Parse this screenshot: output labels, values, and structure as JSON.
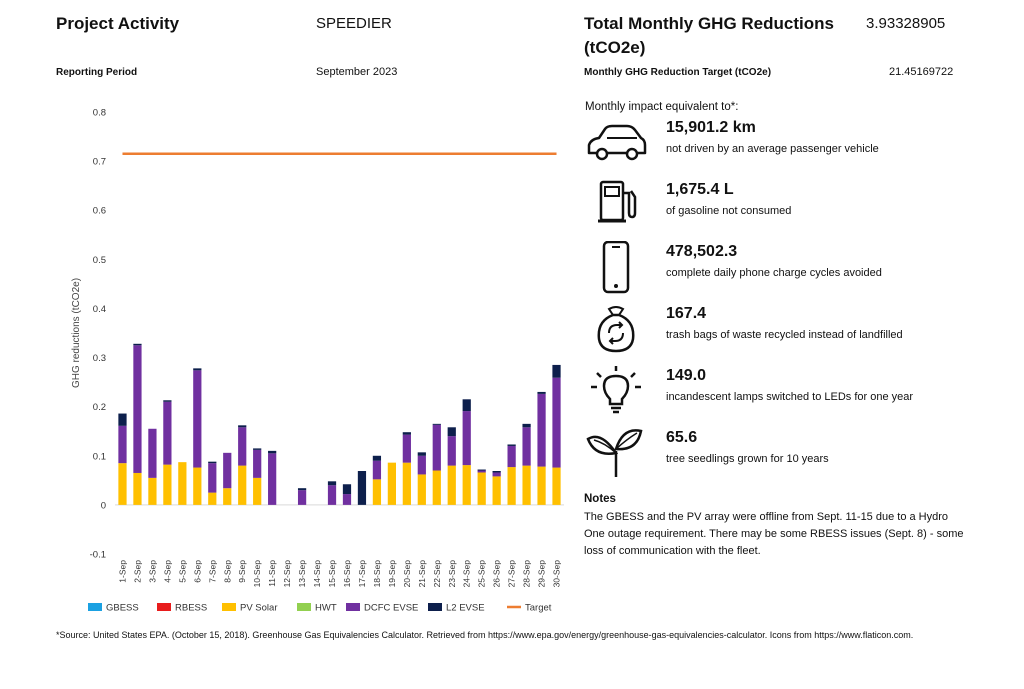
{
  "header": {
    "project_activity_label": "Project Activity",
    "project_name": "SPEEDIER",
    "reporting_period_label": "Reporting Period",
    "reporting_period": "September 2023",
    "total_label_line1": "Total Monthly GHG Reductions",
    "total_label_line2": "(tCO2e)",
    "total_value": "3.93328905",
    "target_label": "Monthly GHG Reduction Target (tCO2e)",
    "target_value": "21.45169722"
  },
  "impact": {
    "title": "Monthly impact equivalent to*:",
    "items": [
      {
        "icon": "car-icon",
        "value": "15,901.2 km",
        "desc": "not driven by an average passenger vehicle"
      },
      {
        "icon": "fuel-pump-icon",
        "value": "1,675.4 L",
        "desc": "of gasoline not consumed"
      },
      {
        "icon": "phone-icon",
        "value": "478,502.3",
        "desc": "complete daily phone charge cycles avoided"
      },
      {
        "icon": "recycle-bag-icon",
        "value": "167.4",
        "desc": "trash bags of waste recycled instead of landfilled"
      },
      {
        "icon": "lightbulb-icon",
        "value": "149.0",
        "desc": "incandescent lamps switched to LEDs for one year"
      },
      {
        "icon": "seedling-icon",
        "value": "65.6",
        "desc": "tree seedlings grown for 10 years"
      }
    ]
  },
  "notes": {
    "title": "Notes",
    "text": "The GBESS and the PV array were offline from Sept. 11-15 due to a Hydro One outage requirement. There may be some RBESS issues (Sept. 8) - some loss of communication with the fleet."
  },
  "footer": {
    "text": "*Source: United States EPA. (October 15, 2018). Greenhouse Gas Equivalencies Calculator. Retrieved from https://www.epa.gov/energy/greenhouse-gas-equivalencies-calculator. Icons from https://www.flaticon.com."
  },
  "chart_data": {
    "type": "bar",
    "stacked": true,
    "ylabel": "GHG reductions (tCO2e)",
    "xlabel": "",
    "ylim": [
      -0.1,
      0.8
    ],
    "yticks": [
      -0.1,
      0,
      0.1,
      0.2,
      0.3,
      0.4,
      0.5,
      0.6,
      0.7,
      0.8
    ],
    "ytick_labels": [
      "-0.1",
      "0",
      "0.1",
      "0.2",
      "0.3",
      "0.4",
      "0.5",
      "0.6",
      "0.7",
      "0.8"
    ],
    "grid": false,
    "legend_position": "bottom",
    "categories": [
      "1-Sep",
      "2-Sep",
      "3-Sep",
      "4-Sep",
      "5-Sep",
      "6-Sep",
      "7-Sep",
      "8-Sep",
      "9-Sep",
      "10-Sep",
      "11-Sep",
      "12-Sep",
      "13-Sep",
      "14-Sep",
      "15-Sep",
      "16-Sep",
      "17-Sep",
      "18-Sep",
      "19-Sep",
      "20-Sep",
      "21-Sep",
      "22-Sep",
      "23-Sep",
      "24-Sep",
      "25-Sep",
      "26-Sep",
      "27-Sep",
      "28-Sep",
      "29-Sep",
      "30-Sep"
    ],
    "series": [
      {
        "name": "GBESS",
        "color": "#1ba1e2",
        "values": [
          0,
          0,
          0,
          0,
          0,
          0,
          0,
          0,
          0,
          0,
          0,
          0,
          0,
          0,
          0,
          0,
          0,
          0,
          0,
          0,
          0,
          0,
          0,
          0,
          0,
          0,
          0,
          0,
          0,
          0
        ]
      },
      {
        "name": "RBESS",
        "color": "#e81c1c",
        "values": [
          0,
          0,
          0,
          0,
          0,
          0,
          0,
          0,
          0,
          0,
          0,
          0,
          0,
          0,
          0,
          0,
          0,
          0,
          0,
          0,
          0,
          0,
          0,
          0,
          0,
          0,
          0,
          0,
          0,
          0
        ]
      },
      {
        "name": "PV Solar",
        "color": "#ffc000",
        "values": [
          0.085,
          0.065,
          0.055,
          0.082,
          0.087,
          0.076,
          0.025,
          0.034,
          0.08,
          0.055,
          0,
          0,
          0,
          0,
          0,
          0,
          0,
          0.052,
          0.086,
          0.086,
          0.062,
          0.07,
          0.08,
          0.081,
          0.066,
          0.058,
          0.077,
          0.08,
          0.078,
          0.076
        ]
      },
      {
        "name": "HWT",
        "color": "#92d050",
        "values": [
          0,
          0,
          0,
          0,
          0,
          0,
          0,
          0,
          0,
          0,
          0,
          0,
          0,
          0,
          0,
          0,
          0,
          0,
          0,
          0,
          0,
          0,
          0,
          0,
          0,
          0,
          0,
          0,
          0,
          0
        ]
      },
      {
        "name": "DCFC EVSE",
        "color": "#7030a0",
        "values": [
          0.076,
          0.26,
          0.1,
          0.128,
          0,
          0.198,
          0.06,
          0.072,
          0.078,
          0.057,
          0.105,
          0,
          0.03,
          0,
          0.04,
          0.022,
          0,
          0.038,
          0,
          0.057,
          0.038,
          0.093,
          0.06,
          0.11,
          0.004,
          0.008,
          0.043,
          0.078,
          0.148,
          0.183
        ]
      },
      {
        "name": "L2 EVSE",
        "color": "#0d1f4c",
        "values": [
          0.025,
          0.003,
          0,
          0.003,
          0,
          0.004,
          0.003,
          0,
          0.004,
          0.003,
          0.005,
          0,
          0.004,
          0,
          0.008,
          0.02,
          0.069,
          0.01,
          0,
          0.005,
          0.007,
          0.002,
          0.018,
          0.024,
          0.002,
          0.003,
          0.003,
          0.007,
          0.004,
          0.026
        ]
      },
      {
        "name": "Target",
        "color": "#ed7d31",
        "type": "line",
        "values": [
          0.715,
          0.715,
          0.715,
          0.715,
          0.715,
          0.715,
          0.715,
          0.715,
          0.715,
          0.715,
          0.715,
          0.715,
          0.715,
          0.715,
          0.715,
          0.715,
          0.715,
          0.715,
          0.715,
          0.715,
          0.715,
          0.715,
          0.715,
          0.715,
          0.715,
          0.715,
          0.715,
          0.715,
          0.715,
          0.715
        ]
      }
    ]
  }
}
